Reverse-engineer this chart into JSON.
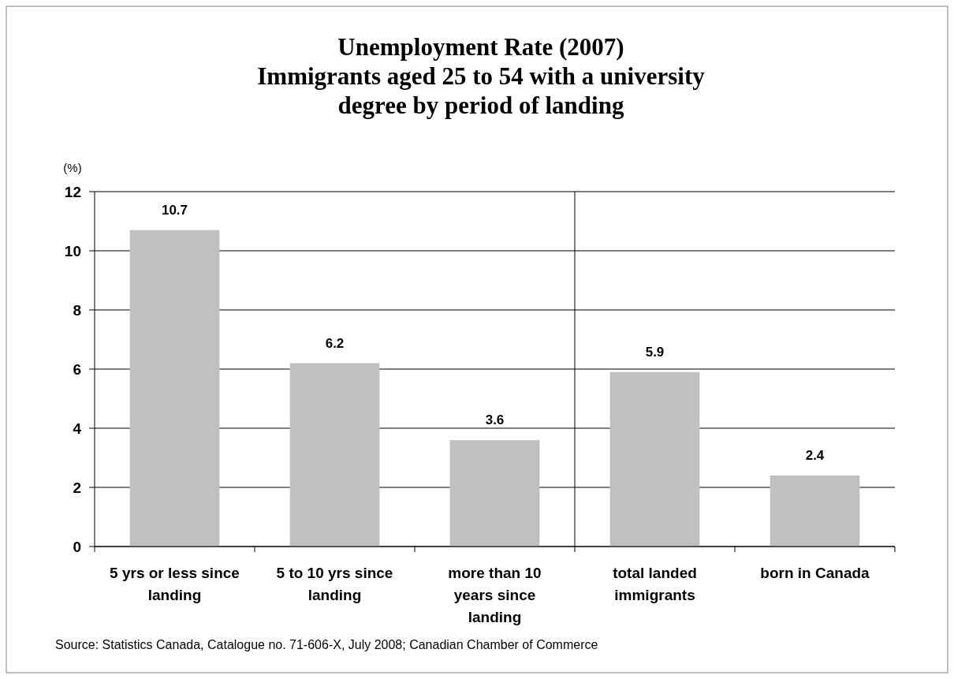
{
  "chart_data": {
    "type": "bar",
    "title": "Unemployment Rate (2007)\nImmigrants aged 25 to 54 with a university\ndegree by period of landing",
    "ylabel": "(%)",
    "categories": [
      "5 yrs or less since landing",
      "5 to 10 yrs since landing",
      "more than 10 years since landing",
      "total landed immigrants",
      "born in Canada"
    ],
    "values": [
      10.7,
      6.2,
      3.6,
      5.9,
      2.4
    ],
    "color": "#c0c0c0",
    "ylim": [
      0,
      12
    ],
    "yticks": [
      0,
      2,
      4,
      6,
      8,
      10,
      12
    ],
    "grid": "y",
    "data_labels": true,
    "annotations": [
      "Source:  Statistics Canada, Catalogue no. 71-606-X, July 2008; Canadian Chamber of Commerce"
    ]
  }
}
